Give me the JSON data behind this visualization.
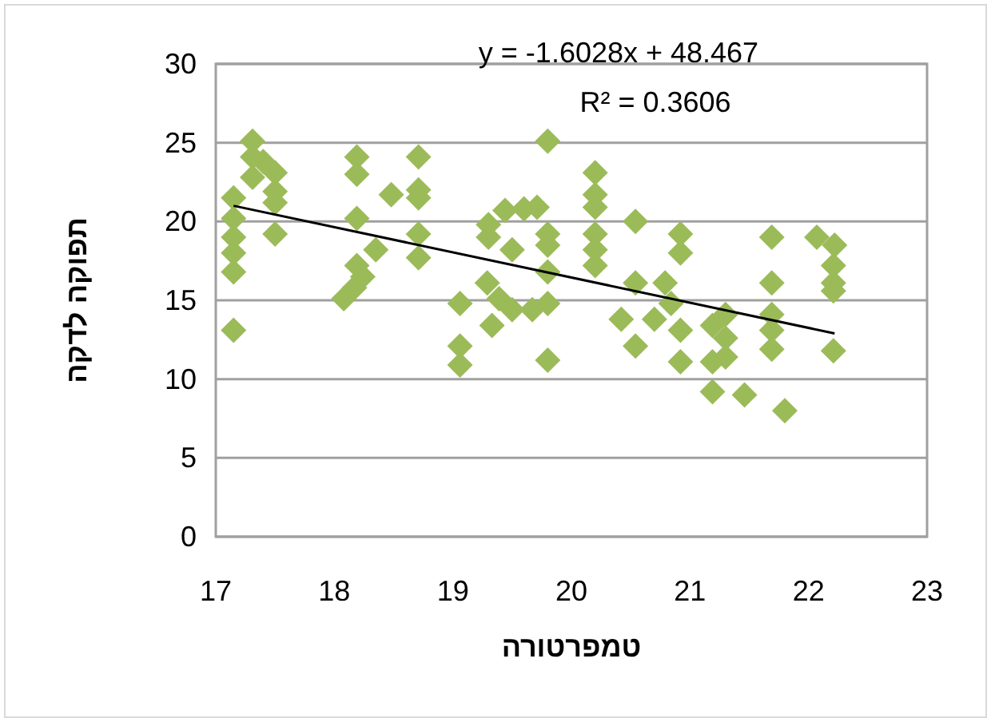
{
  "chart_data": {
    "type": "scatter",
    "xlabel": "טמפרטורה",
    "ylabel": "תפוקה לדקה",
    "annotations": [
      "y = -1.6028x + 48.467",
      "R² = 0.3606"
    ],
    "xlim": [
      17,
      23
    ],
    "xticks": [
      17,
      18,
      19,
      20,
      21,
      22,
      23
    ],
    "ylim": [
      0,
      30
    ],
    "yticks": [
      0,
      5,
      10,
      15,
      20,
      25,
      30
    ],
    "grid": "y",
    "series": [
      {
        "color": "#9bbb59",
        "marker": "diamond",
        "x": [
          17.15,
          17.15,
          17.15,
          17.15,
          17.15,
          17.15,
          17.31,
          17.31,
          17.31,
          17.4,
          17.5,
          17.5,
          17.5,
          17.5,
          18.19,
          18.19,
          18.19,
          18.19,
          18.24,
          18.08,
          18.17,
          18.35,
          18.48,
          18.71,
          18.71,
          18.71,
          18.71,
          18.71,
          19.06,
          19.06,
          19.06,
          19.3,
          19.3,
          19.33,
          19.44,
          19.29,
          19.39,
          19.5,
          19.5,
          19.6,
          19.8,
          19.71,
          19.8,
          19.8,
          19.8,
          19.8,
          19.8,
          19.67,
          20.2,
          20.2,
          20.2,
          20.2,
          20.2,
          20.2,
          20.54,
          20.54,
          20.42,
          20.54,
          20.79,
          20.7,
          20.92,
          20.92,
          20.92,
          20.92,
          20.84,
          21.19,
          21.3,
          21.3,
          21.3,
          21.19,
          21.19,
          21.46,
          21.69,
          21.69,
          21.69,
          21.69,
          21.69,
          21.8,
          22.07,
          22.22,
          22.21,
          22.21,
          22.21,
          22.21
        ],
        "values": [
          21.5,
          20.2,
          19.0,
          18.0,
          16.8,
          13.1,
          25.1,
          24.1,
          22.8,
          23.8,
          23.1,
          21.9,
          21.2,
          19.2,
          24.1,
          23.0,
          20.2,
          17.2,
          16.5,
          15.1,
          15.8,
          18.2,
          21.7,
          24.1,
          22.0,
          21.5,
          19.2,
          17.7,
          14.8,
          12.1,
          10.9,
          19.8,
          19.0,
          13.4,
          20.7,
          16.1,
          15.1,
          14.4,
          18.2,
          20.8,
          25.1,
          20.9,
          19.2,
          18.5,
          16.8,
          14.8,
          11.2,
          14.4,
          23.1,
          21.7,
          20.9,
          19.2,
          18.2,
          17.2,
          20.0,
          16.1,
          13.8,
          12.1,
          16.1,
          13.8,
          19.2,
          18.0,
          13.1,
          11.1,
          14.8,
          13.4,
          14.1,
          12.6,
          11.4,
          11.1,
          9.2,
          9.0,
          19.0,
          16.1,
          14.1,
          13.1,
          11.9,
          8.0,
          19.0,
          18.5,
          17.2,
          16.1,
          15.6,
          11.8
        ]
      },
      {
        "type": "line",
        "color": "#000000",
        "marker": "none",
        "x": [
          17.15,
          22.22
        ],
        "values": [
          21.0,
          12.9
        ]
      }
    ]
  }
}
